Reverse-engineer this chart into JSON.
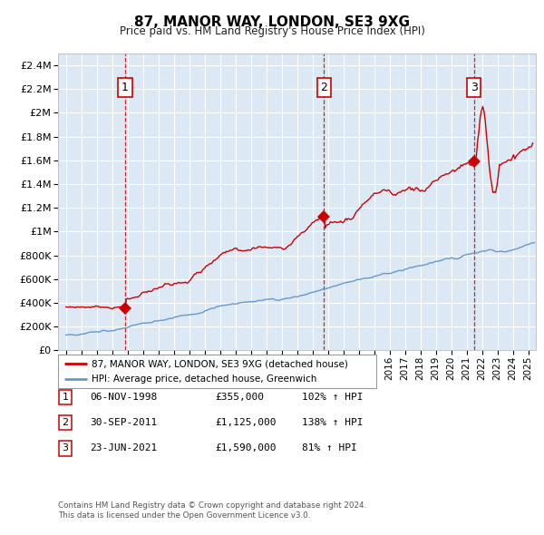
{
  "title": "87, MANOR WAY, LONDON, SE3 9XG",
  "subtitle": "Price paid vs. HM Land Registry's House Price Index (HPI)",
  "legend_line1": "87, MANOR WAY, LONDON, SE3 9XG (detached house)",
  "legend_line2": "HPI: Average price, detached house, Greenwich",
  "footer1": "Contains HM Land Registry data © Crown copyright and database right 2024.",
  "footer2": "This data is licensed under the Open Government Licence v3.0.",
  "transactions": [
    {
      "num": 1,
      "date": "06-NOV-1998",
      "price": 355000,
      "pct": "102%",
      "dir": "↑"
    },
    {
      "num": 2,
      "date": "30-SEP-2011",
      "price": 1125000,
      "pct": "138%",
      "dir": "↑"
    },
    {
      "num": 3,
      "date": "23-JUN-2021",
      "price": 1590000,
      "pct": "81%",
      "dir": "↑"
    }
  ],
  "sale_years": [
    1998.84,
    2011.75,
    2021.47
  ],
  "sale_prices": [
    355000,
    1125000,
    1590000
  ],
  "hpi_color": "#6699cc",
  "price_color": "#cc0000",
  "marker_color": "#cc0000",
  "vline_color": "#cc0000",
  "background_color": "#dce9f5",
  "grid_color": "#ffffff",
  "yticks": [
    0,
    200000,
    400000,
    600000,
    800000,
    1000000,
    1200000,
    1400000,
    1600000,
    1800000,
    2000000,
    2200000,
    2400000
  ],
  "ylim": [
    0,
    2500000
  ],
  "xlim_left": 1994.5,
  "xlim_right": 2025.5,
  "xticks_start": 1995,
  "xticks_end": 2025
}
